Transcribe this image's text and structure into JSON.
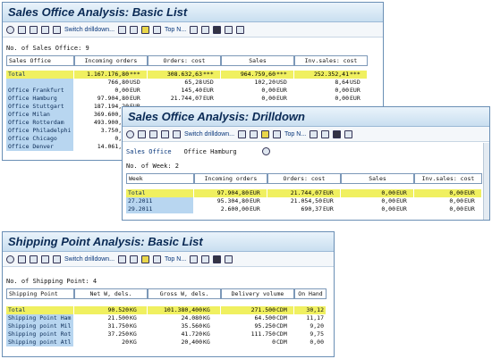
{
  "w1": {
    "title": "Sales Office Analysis: Basic List",
    "toolbar": {
      "switch": "Switch drilldown...",
      "top": "Top N..."
    },
    "info": "No. of Sales Office: 9",
    "headers": [
      "Sales Office",
      "Incoming orders",
      "Orders: cost",
      "Sales",
      "Inv.sales: cost"
    ],
    "total": {
      "label": "Total",
      "inc": "1.167.176,80",
      "inc_u": "***",
      "ord": "308.632,63",
      "ord_u": "***",
      "sal": "964.759,60",
      "sal_u": "***",
      "inv": "252.352,41",
      "inv_u": "***"
    },
    "rows": [
      {
        "label": "",
        "inc": "766,80",
        "inc_u": "USD",
        "ord": "65,28",
        "ord_u": "USD",
        "sal": "102,20",
        "sal_u": "USD",
        "inv": "8,64",
        "inv_u": "USD"
      },
      {
        "label": "Office Frankfurt",
        "inc": "0,00",
        "inc_u": "EUR",
        "ord": "145,40",
        "ord_u": "EUR",
        "sal": "0,00",
        "sal_u": "EUR",
        "inv": "0,00",
        "inv_u": "EUR"
      },
      {
        "label": "Office Hamburg",
        "inc": "97.904,80",
        "inc_u": "EUR",
        "ord": "21.744,07",
        "ord_u": "EUR",
        "sal": "0,00",
        "sal_u": "EUR",
        "inv": "0,00",
        "inv_u": "EUR"
      },
      {
        "label": "Office Stuttgart",
        "inc": "187.194,20",
        "inc_u": "EUR",
        "ord": "",
        "ord_u": "",
        "sal": "",
        "sal_u": "",
        "inv": "",
        "inv_u": ""
      },
      {
        "label": "Office Milan",
        "inc": "369.600,00",
        "inc_u": "EUR",
        "ord": "",
        "ord_u": "",
        "sal": "",
        "sal_u": "",
        "inv": "",
        "inv_u": ""
      },
      {
        "label": "Office Rotterdam",
        "inc": "493.900,00",
        "inc_u": "EUR",
        "ord": "",
        "ord_u": "",
        "sal": "",
        "sal_u": "",
        "inv": "",
        "inv_u": ""
      },
      {
        "label": "Office Philadelphi",
        "inc": "3.750,00",
        "inc_u": "",
        "ord": "",
        "ord_u": "",
        "sal": "",
        "sal_u": "",
        "inv": "",
        "inv_u": ""
      },
      {
        "label": "Office Chicago",
        "inc": "0,00",
        "inc_u": "",
        "ord": "",
        "ord_u": "",
        "sal": "",
        "sal_u": "",
        "inv": "",
        "inv_u": ""
      },
      {
        "label": "Office Denver",
        "inc": "14.061,00",
        "inc_u": "",
        "ord": "",
        "ord_u": "",
        "sal": "",
        "sal_u": "",
        "inv": "",
        "inv_u": ""
      }
    ]
  },
  "w2": {
    "title": "Sales Office Analysis: Drilldown",
    "toolbar": {
      "switch": "Switch drilldown...",
      "top": "Top N..."
    },
    "filter_label": "Sales Office",
    "filter_value": "Office Hamburg",
    "info": "No. of Week: 2",
    "headers": [
      "Week",
      "Incoming orders",
      "Orders: cost",
      "Sales",
      "Inv.sales: cost"
    ],
    "total": {
      "label": "Total",
      "inc": "97.904,80",
      "inc_u": "EUR",
      "ord": "21.744,07",
      "ord_u": "EUR",
      "sal": "0,00",
      "sal_u": "EUR",
      "inv": "0,00",
      "inv_u": "EUR"
    },
    "rows": [
      {
        "label": "27.2011",
        "inc": "95.304,80",
        "inc_u": "EUR",
        "ord": "21.054,50",
        "ord_u": "EUR",
        "sal": "0,00",
        "sal_u": "EUR",
        "inv": "0,00",
        "inv_u": "EUR"
      },
      {
        "label": "29.2011",
        "inc": "2.600,00",
        "inc_u": "EUR",
        "ord": "690,37",
        "ord_u": "EUR",
        "sal": "0,00",
        "sal_u": "EUR",
        "inv": "0,00",
        "inv_u": "EUR"
      }
    ]
  },
  "w3": {
    "title": "Shipping Point Analysis: Basic List",
    "toolbar": {
      "switch": "Switch drilldown...",
      "top": "Top N..."
    },
    "info": "No. of Shipping Point: 4",
    "headers": [
      "Shipping Point",
      "Net W, dels.",
      "Gross W, dels.",
      "Delivery volume",
      "On Hand"
    ],
    "total": {
      "label": "Total",
      "net": "90.520",
      "net_u": "KG",
      "gross": "101.380,400",
      "gross_u": "KG",
      "vol": "271.500",
      "vol_u": "CDM",
      "oh": "30,12"
    },
    "rows": [
      {
        "label": "Shipping Point Ham",
        "net": "21.500",
        "net_u": "KG",
        "gross": "24.080",
        "gross_u": "KG",
        "vol": "64.500",
        "vol_u": "CDM",
        "oh": "11,17"
      },
      {
        "label": "Shipping point Mil",
        "net": "31.750",
        "net_u": "KG",
        "gross": "35.560",
        "gross_u": "KG",
        "vol": "95.250",
        "vol_u": "CDM",
        "oh": "9,20"
      },
      {
        "label": "Shipping point Rot",
        "net": "37.250",
        "net_u": "KG",
        "gross": "41.720",
        "gross_u": "KG",
        "vol": "111.750",
        "vol_u": "CDM",
        "oh": "9,75"
      },
      {
        "label": "Shipping point Atl",
        "net": "20",
        "net_u": "KG",
        "gross": "20,400",
        "gross_u": "KG",
        "vol": "0",
        "vol_u": "CDM",
        "oh": "0,00"
      }
    ]
  }
}
